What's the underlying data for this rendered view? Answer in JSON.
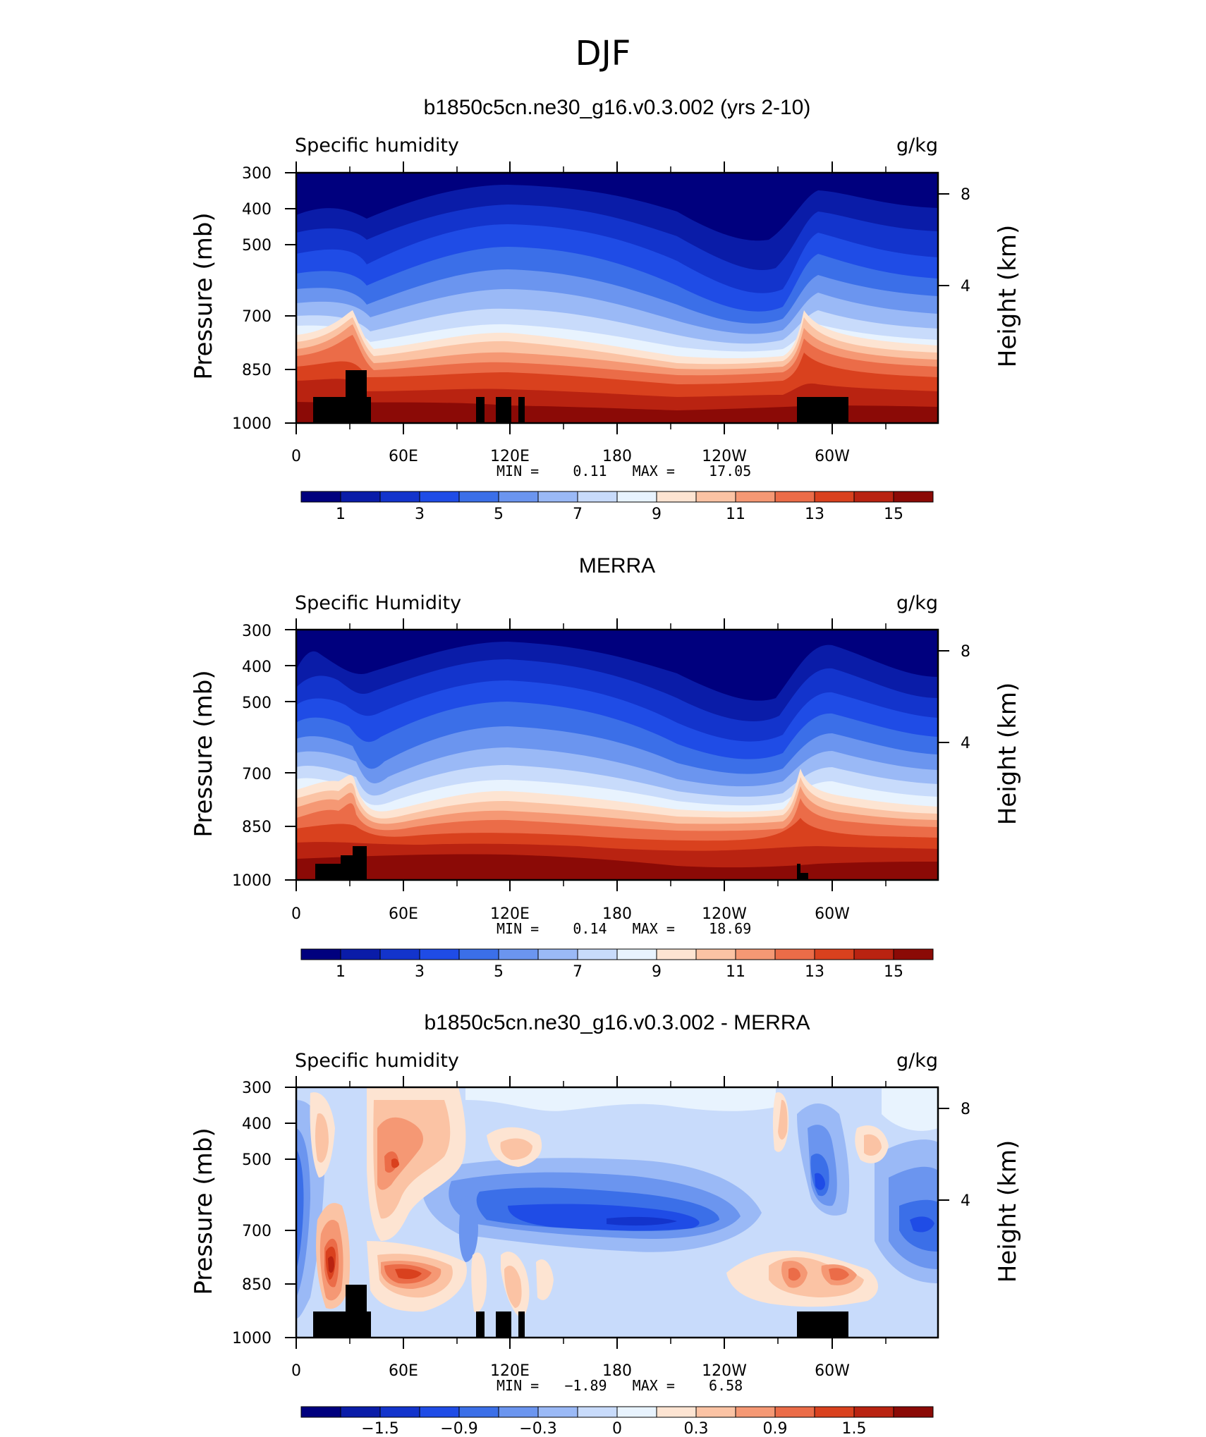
{
  "main_title": "DJF",
  "chart_data": [
    {
      "type": "heatmap",
      "title": "b1850c5cn.ne30_g16.v0.3.002 (yrs 2-10)",
      "variable_label": "Specific humidity",
      "units": "g/kg",
      "ylabel": "Pressure (mb)",
      "ylabel_right": "Height (km)",
      "x_ticks": [
        "0",
        "60E",
        "120E",
        "180",
        "120W",
        "60W"
      ],
      "y_ticks": [
        "300",
        "400",
        "500",
        "700",
        "850",
        "1000"
      ],
      "y_ticks_right": [
        "8",
        "4"
      ],
      "stats_text": "MIN =    0.11   MAX =    17.05",
      "min": 0.11,
      "max": 17.05,
      "colorbar": {
        "labels": [
          "1",
          "3",
          "5",
          "7",
          "9",
          "11",
          "13",
          "15"
        ],
        "colors": [
          "#00007e",
          "#0a1ca8",
          "#1334cc",
          "#1f4ce6",
          "#3b6fe8",
          "#6b95ef",
          "#9ab9f6",
          "#c8dbfb",
          "#e8f3fe",
          "#fde4d2",
          "#fbc3a4",
          "#f59874",
          "#eb6c48",
          "#d9411e",
          "#b92311",
          "#8b0a06"
        ]
      }
    },
    {
      "type": "heatmap",
      "title": "MERRA",
      "variable_label": "Specific Humidity",
      "units": "g/kg",
      "ylabel": "Pressure (mb)",
      "ylabel_right": "Height (km)",
      "x_ticks": [
        "0",
        "60E",
        "120E",
        "180",
        "120W",
        "60W"
      ],
      "y_ticks": [
        "300",
        "400",
        "500",
        "700",
        "850",
        "1000"
      ],
      "y_ticks_right": [
        "8",
        "4"
      ],
      "stats_text": "MIN =    0.14   MAX =    18.69",
      "min": 0.14,
      "max": 18.69,
      "colorbar": {
        "labels": [
          "1",
          "3",
          "5",
          "7",
          "9",
          "11",
          "13",
          "15"
        ],
        "colors": [
          "#00007e",
          "#0a1ca8",
          "#1334cc",
          "#1f4ce6",
          "#3b6fe8",
          "#6b95ef",
          "#9ab9f6",
          "#c8dbfb",
          "#e8f3fe",
          "#fde4d2",
          "#fbc3a4",
          "#f59874",
          "#eb6c48",
          "#d9411e",
          "#b92311",
          "#8b0a06"
        ]
      }
    },
    {
      "type": "heatmap",
      "title": "b1850c5cn.ne30_g16.v0.3.002 - MERRA",
      "variable_label": "Specific humidity",
      "units": "g/kg",
      "ylabel": "Pressure (mb)",
      "ylabel_right": "Height (km)",
      "x_ticks": [
        "0",
        "60E",
        "120E",
        "180",
        "120W",
        "60W"
      ],
      "y_ticks": [
        "300",
        "400",
        "500",
        "700",
        "850",
        "1000"
      ],
      "y_ticks_right": [
        "8",
        "4"
      ],
      "stats_text": "MIN =   −1.89   MAX =    6.58",
      "min": -1.89,
      "max": 6.58,
      "colorbar": {
        "labels": [
          "−1.5",
          "−0.9",
          "−0.3",
          "0",
          "0.3",
          "0.9",
          "1.5"
        ],
        "colors": [
          "#00007e",
          "#0a1ca8",
          "#1334cc",
          "#1f4ce6",
          "#3b6fe8",
          "#6b95ef",
          "#9ab9f6",
          "#c8dbfb",
          "#e8f3fe",
          "#fde4d2",
          "#fbc3a4",
          "#f59874",
          "#eb6c48",
          "#d9411e",
          "#b92311",
          "#8b0a06"
        ]
      }
    }
  ]
}
